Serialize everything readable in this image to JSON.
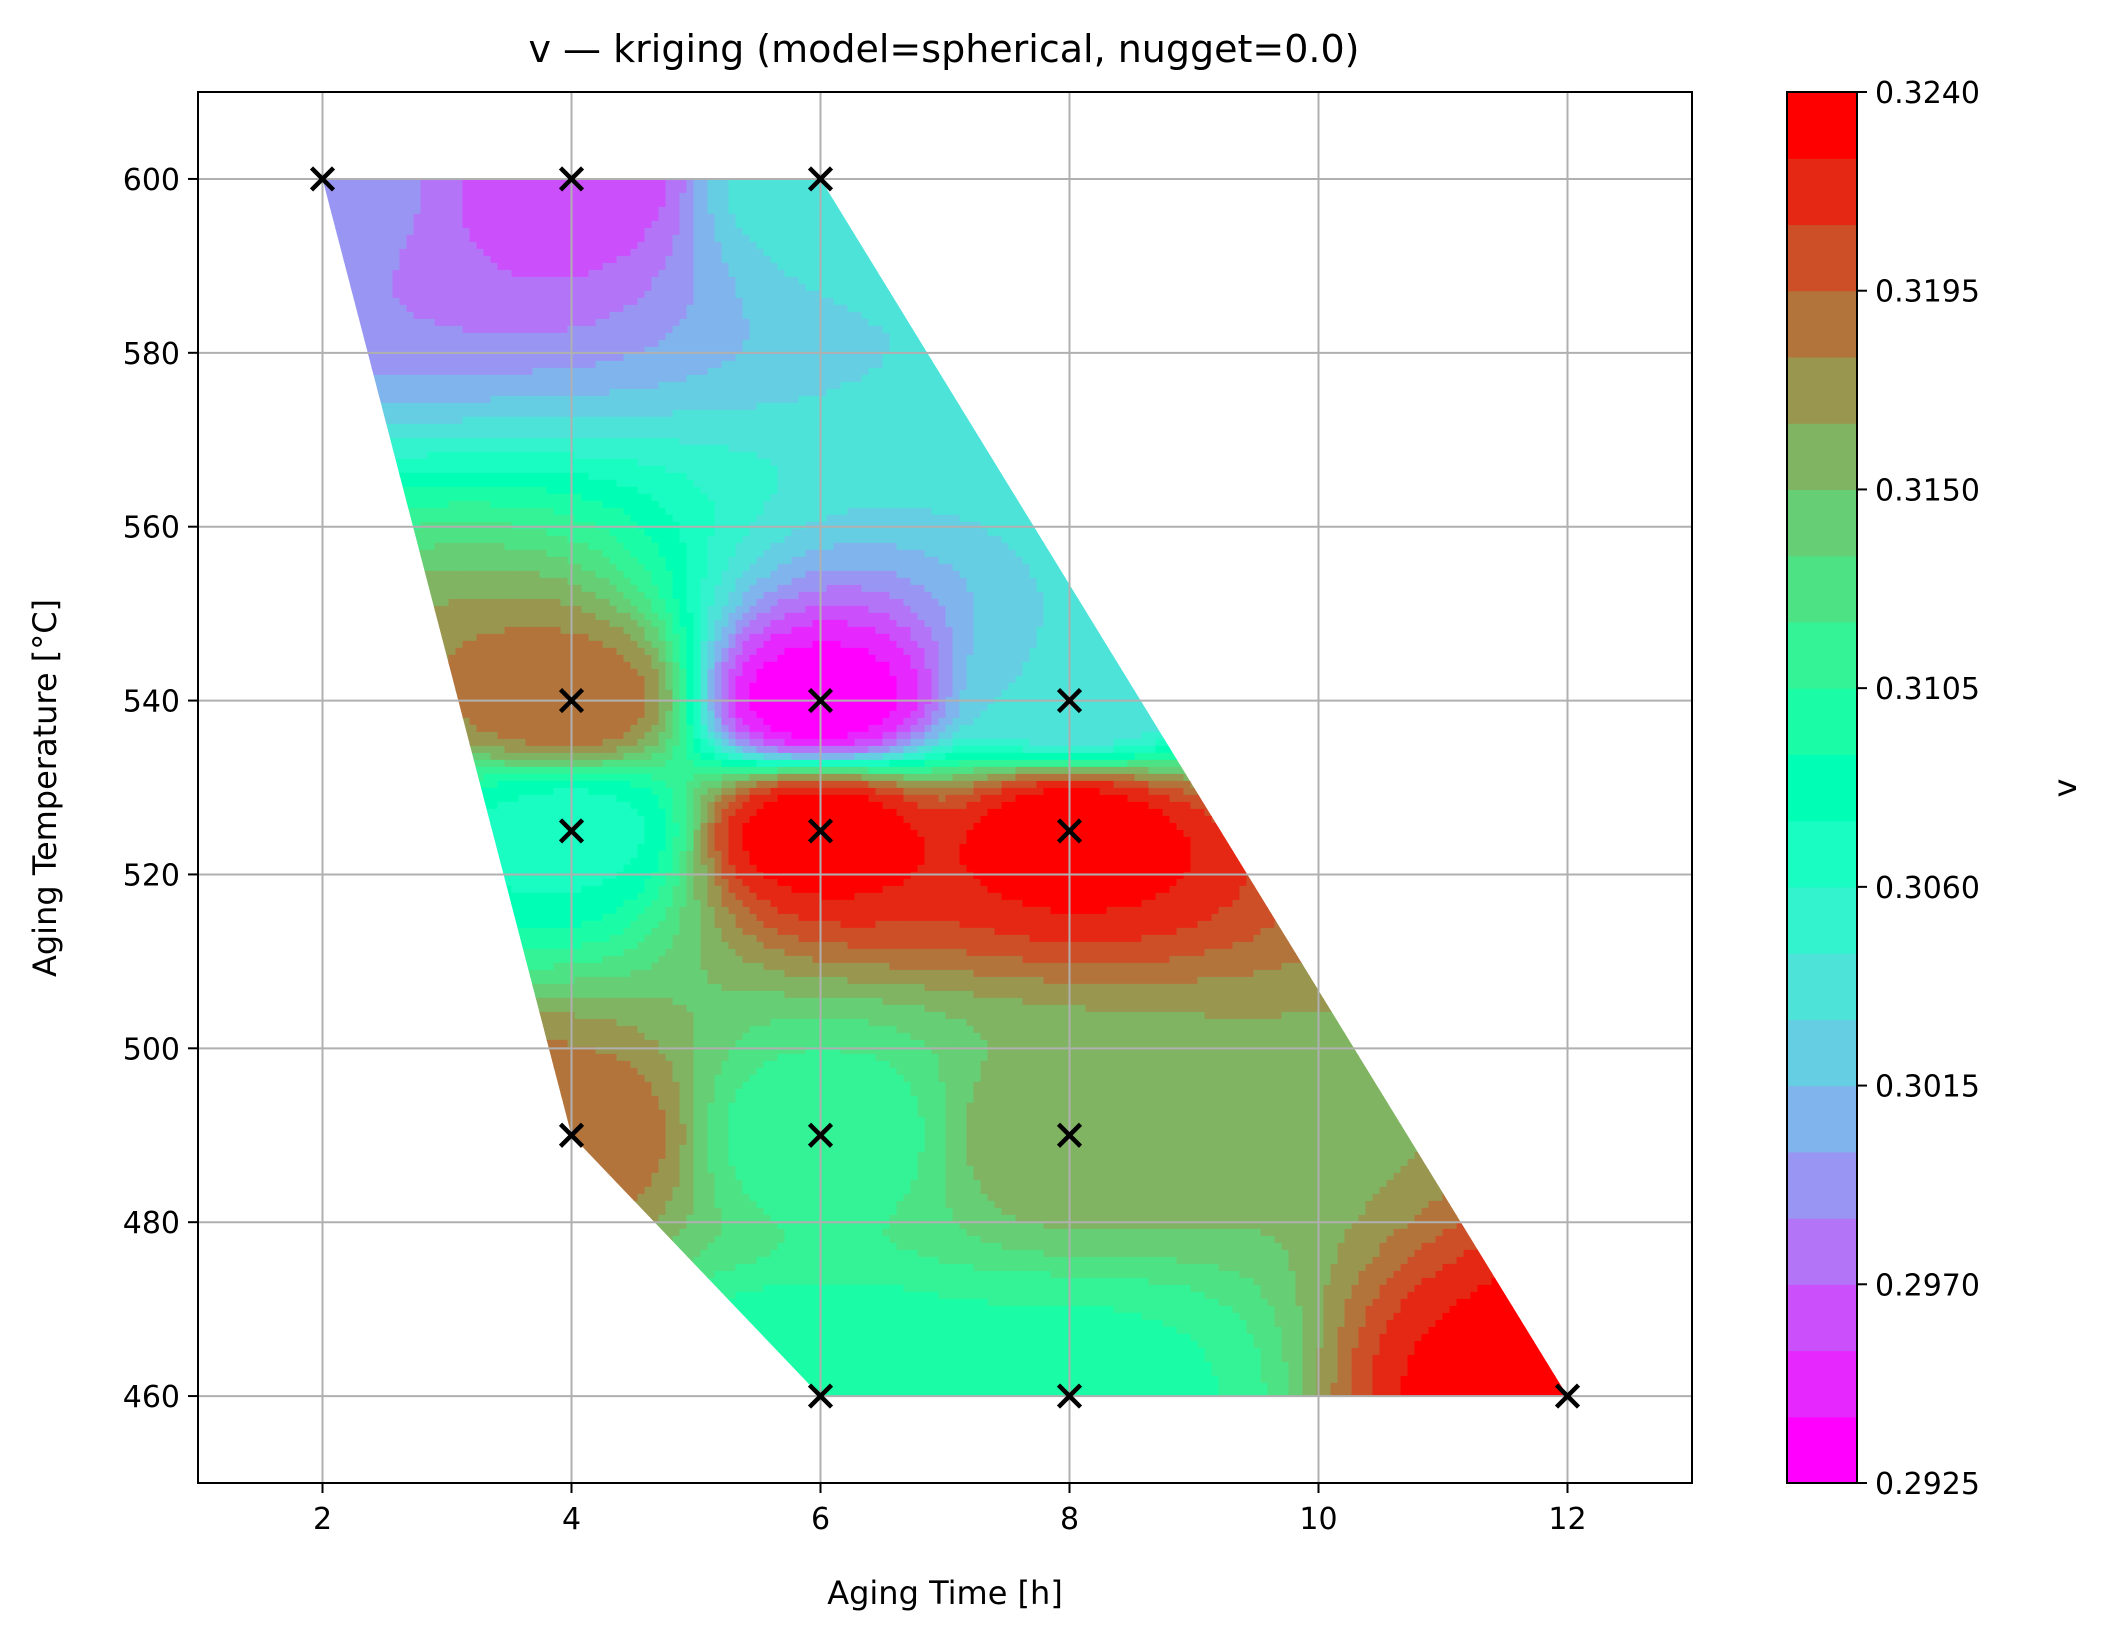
{
  "chart_data": {
    "type": "heatmap",
    "title": "v — kriging (model=spherical, nugget=0.0)",
    "xlabel": "Aging Time [h]",
    "ylabel": "Aging Temperature [°C]",
    "colorbar_label": "v",
    "xlim": [
      1,
      13
    ],
    "ylim": [
      450,
      610
    ],
    "xticks": [
      2,
      4,
      6,
      8,
      10,
      12
    ],
    "yticks": [
      460,
      480,
      500,
      520,
      540,
      560,
      580,
      600
    ],
    "grid": true,
    "colormap": "rainbow",
    "levels_min": 0.2925,
    "levels_max": 0.324,
    "level_step": 0.0015,
    "colorbar_ticks": [
      "0.2925",
      "0.2970",
      "0.3015",
      "0.3060",
      "0.3105",
      "0.3150",
      "0.3195",
      "0.3240"
    ],
    "samples": [
      {
        "time": 2,
        "temp": 600,
        "v": 0.299
      },
      {
        "time": 4,
        "temp": 600,
        "v": 0.296
      },
      {
        "time": 6,
        "temp": 600,
        "v": 0.304
      },
      {
        "time": 4,
        "temp": 540,
        "v": 0.319
      },
      {
        "time": 6,
        "temp": 540,
        "v": 0.293
      },
      {
        "time": 8,
        "temp": 540,
        "v": 0.303
      },
      {
        "time": 4,
        "temp": 525,
        "v": 0.307
      },
      {
        "time": 6,
        "temp": 525,
        "v": 0.3235
      },
      {
        "time": 8,
        "temp": 525,
        "v": 0.3235
      },
      {
        "time": 4,
        "temp": 490,
        "v": 0.319
      },
      {
        "time": 6,
        "temp": 490,
        "v": 0.311
      },
      {
        "time": 8,
        "temp": 490,
        "v": 0.316
      },
      {
        "time": 6,
        "temp": 460,
        "v": 0.309
      },
      {
        "time": 8,
        "temp": 460,
        "v": 0.31
      },
      {
        "time": 12,
        "temp": 460,
        "v": 0.3235
      }
    ]
  }
}
